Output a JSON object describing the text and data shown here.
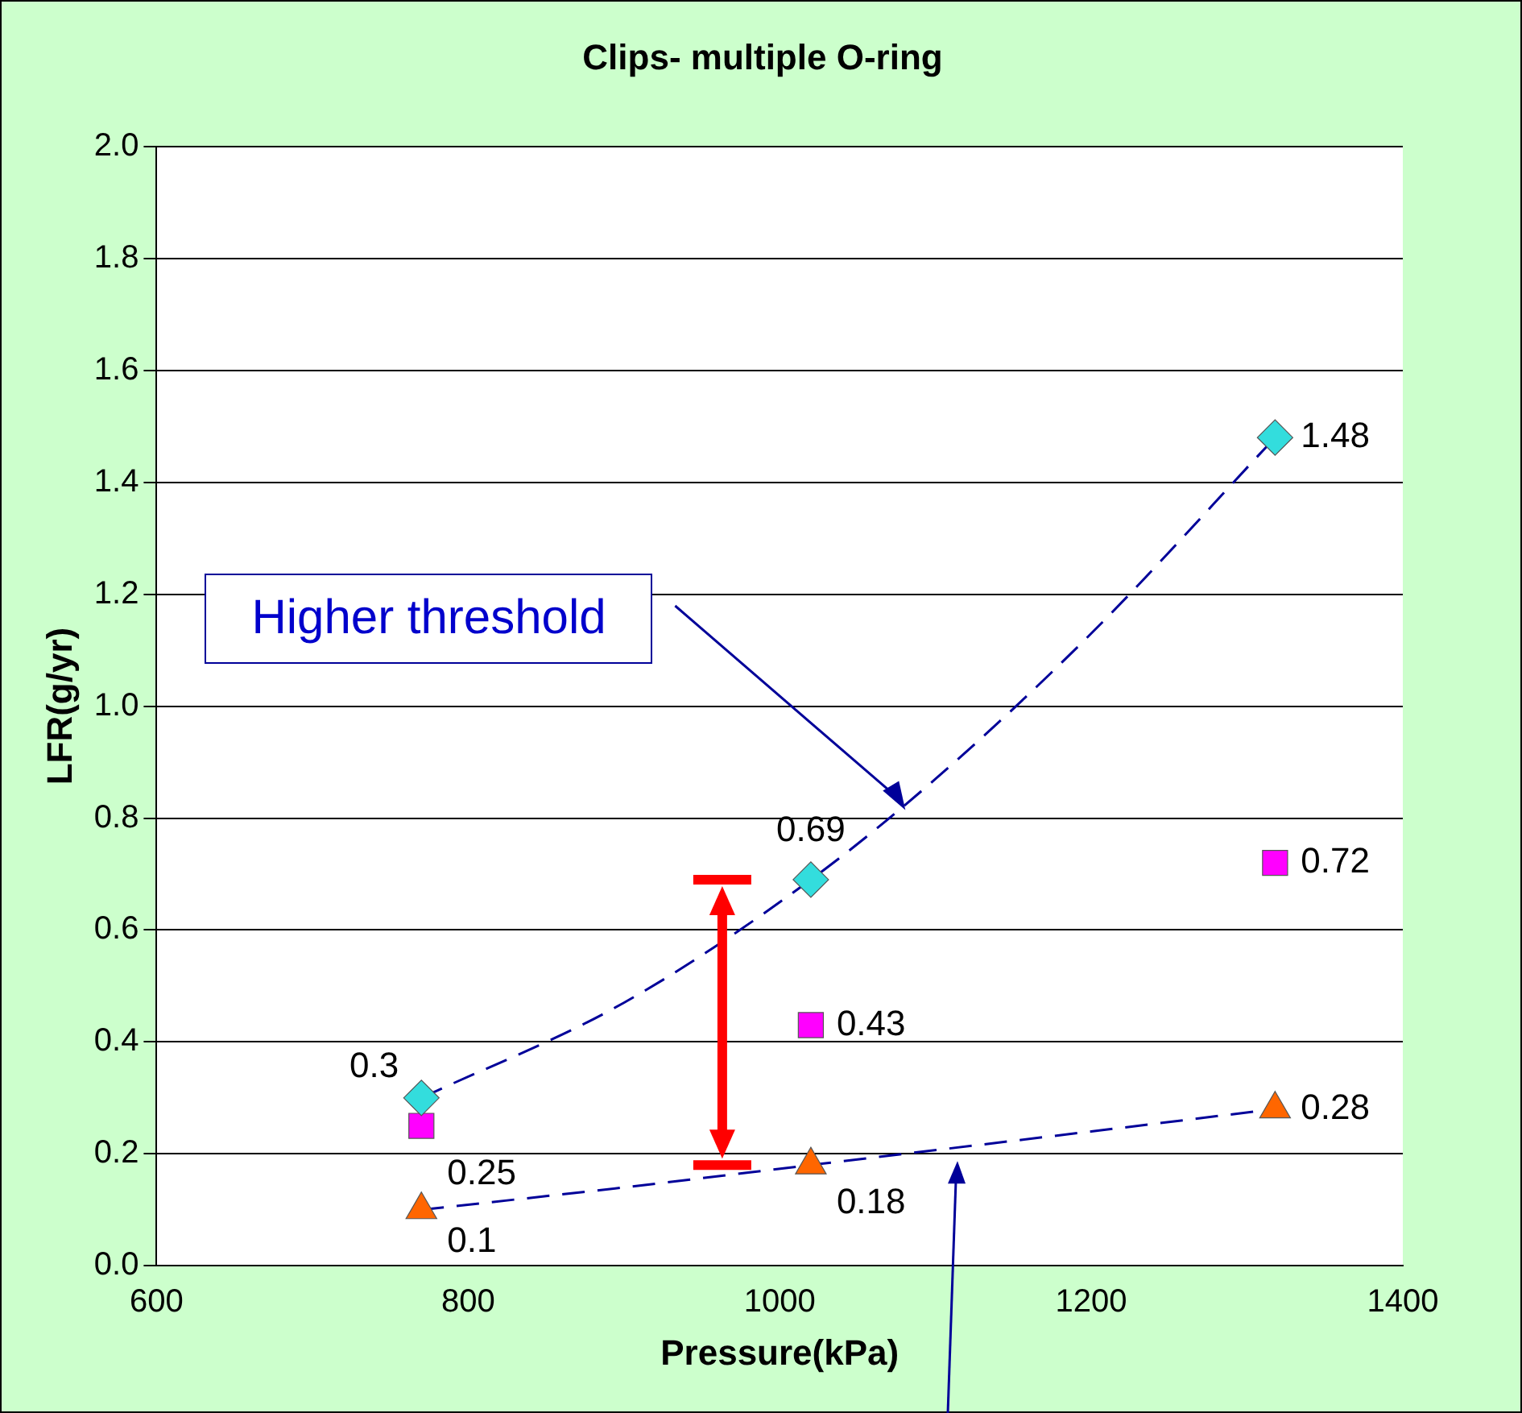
{
  "chart_data": {
    "type": "scatter",
    "title": "Clips- multiple O-ring",
    "xlabel": "Pressure(kPa)",
    "ylabel": "LFR(g/yr)",
    "xlim": [
      600,
      1400
    ],
    "xticks": [
      600,
      800,
      1000,
      1200,
      1400
    ],
    "ylim": [
      0,
      2
    ],
    "yticks": [
      {
        "value": 0,
        "label": "0.0"
      },
      {
        "value": 0.2,
        "label": "0.2"
      },
      {
        "value": 0.4,
        "label": "0.4"
      },
      {
        "value": 0.6,
        "label": "0.6"
      },
      {
        "value": 0.8,
        "label": "0.8"
      },
      {
        "value": 1,
        "label": "1.0"
      },
      {
        "value": 1.2,
        "label": "1.2"
      },
      {
        "value": 1.4,
        "label": "1.4"
      },
      {
        "value": 1.6,
        "label": "1.6"
      },
      {
        "value": 1.8,
        "label": "1.8"
      },
      {
        "value": 2,
        "label": "2.0"
      }
    ],
    "grid": "y",
    "legend": false,
    "series": [
      {
        "type": "scatter",
        "color": "#33dddd",
        "marker": "diamond",
        "x": [
          770,
          1020,
          1318
        ],
        "values": [
          0.3,
          0.69,
          1.48
        ],
        "value_labels": [
          "0.3",
          "0.69",
          "1.48"
        ]
      },
      {
        "type": "scatter",
        "color": "#ff00ff",
        "marker": "square",
        "x": [
          770,
          1020,
          1318
        ],
        "values": [
          0.25,
          0.43,
          0.72
        ],
        "value_labels": [
          "0.25",
          "0.43",
          "0.72"
        ]
      },
      {
        "type": "scatter",
        "color": "#ff6600",
        "marker": "triangle",
        "x": [
          770,
          1020,
          1318
        ],
        "values": [
          0.1,
          0.18,
          0.28
        ],
        "value_labels": [
          "0.1",
          "0.18",
          "0.28"
        ]
      },
      {
        "type": "line",
        "color": "#000099",
        "marker": "none",
        "line_style": "dashed",
        "x": [
          770,
          900,
          1020,
          1100,
          1200,
          1318
        ],
        "values": [
          0.3,
          0.47,
          0.69,
          0.87,
          1.13,
          1.48
        ]
      },
      {
        "type": "line",
        "color": "#000099",
        "marker": "none",
        "line_style": "dashed",
        "x": [
          770,
          900,
          1020,
          1200,
          1318
        ],
        "values": [
          0.1,
          0.14,
          0.18,
          0.24,
          0.28
        ]
      }
    ],
    "annotations": [
      "Higher threshold"
    ]
  }
}
